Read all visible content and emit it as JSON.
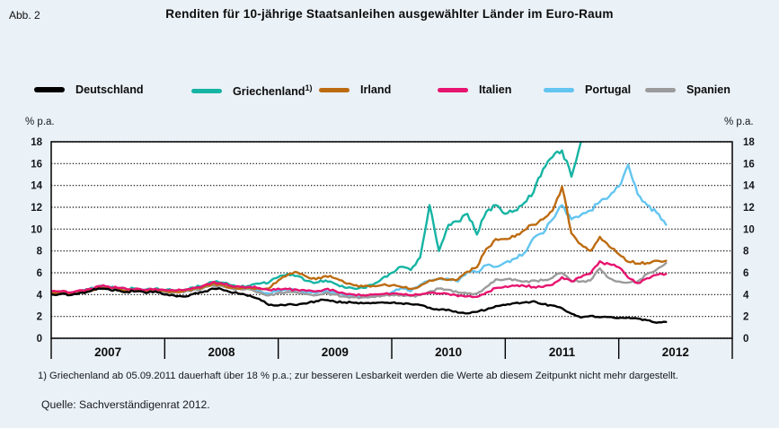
{
  "figure": {
    "fig_label": "Abb. 2",
    "title": "Renditen für 10-jährige Staatsanleihen ausgewählter Länder im Euro-Raum",
    "unit_left": "% p.a.",
    "unit_right": "% p.a.",
    "footnote": "1) Griechenland ab 05.09.2011 dauerhaft über 18 % p.a.; zur besseren Lesbarkeit werden die Werte ab diesem Zeitpunkt nicht mehr dargestellt.",
    "source": "Quelle: Sachverständigenrat 2012."
  },
  "chart_data": {
    "type": "line",
    "title": "Renditen für 10-jährige Staatsanleihen ausgewählter Länder im Euro-Raum",
    "xlabel": "",
    "ylabel": "% p.a.",
    "ylim": [
      0,
      18
    ],
    "ytick_step": 2,
    "grid": "horizontal-dotted",
    "legend_position": "top",
    "x_categories": [
      "2007",
      "2008",
      "2009",
      "2010",
      "2011",
      "2012"
    ],
    "x_start": "2007-01",
    "x_step": "1 month",
    "series": [
      {
        "name": "Deutschland",
        "sup": "",
        "color": "#000000",
        "monthly_values": [
          4.02,
          4.05,
          3.95,
          4.15,
          4.28,
          4.55,
          4.52,
          4.38,
          4.25,
          4.3,
          4.15,
          4.3,
          4.0,
          3.92,
          3.82,
          4.05,
          4.22,
          4.55,
          4.5,
          4.2,
          4.05,
          3.92,
          3.6,
          3.05,
          3.0,
          3.1,
          3.05,
          3.18,
          3.4,
          3.5,
          3.35,
          3.3,
          3.25,
          3.2,
          3.25,
          3.3,
          3.25,
          3.2,
          3.12,
          3.05,
          2.8,
          2.6,
          2.62,
          2.35,
          2.28,
          2.42,
          2.62,
          2.95,
          3.05,
          3.22,
          3.28,
          3.4,
          3.12,
          3.0,
          2.75,
          2.25,
          1.9,
          2.05,
          1.92,
          1.95,
          1.85,
          1.9,
          1.8,
          1.65,
          1.42,
          1.5
        ]
      },
      {
        "name": "Griechenland",
        "sup": "1)",
        "color": "#16b4a3",
        "monthly_values": [
          4.25,
          4.28,
          4.18,
          4.38,
          4.5,
          4.75,
          4.72,
          4.6,
          4.5,
          4.55,
          4.45,
          4.55,
          4.4,
          4.38,
          4.42,
          4.65,
          4.8,
          5.15,
          5.1,
          4.85,
          4.72,
          4.82,
          5.0,
          5.1,
          5.6,
          5.9,
          5.7,
          5.25,
          5.1,
          5.3,
          5.0,
          4.65,
          4.55,
          4.62,
          4.9,
          5.5,
          6.0,
          6.55,
          6.25,
          7.4,
          12.2,
          8.0,
          10.4,
          10.7,
          11.4,
          9.5,
          11.6,
          12.2,
          11.4,
          11.7,
          12.4,
          13.4,
          15.5,
          16.6,
          17.2,
          14.8,
          18.0
        ]
      },
      {
        "name": "Irland",
        "sup": "",
        "color": "#bd6b10",
        "monthly_values": [
          4.1,
          4.12,
          4.02,
          4.22,
          4.35,
          4.62,
          4.6,
          4.48,
          4.35,
          4.42,
          4.3,
          4.45,
          4.32,
          4.28,
          4.32,
          4.52,
          4.65,
          4.95,
          4.9,
          4.62,
          4.55,
          4.62,
          4.52,
          4.55,
          5.3,
          5.8,
          6.05,
          5.65,
          5.4,
          5.7,
          5.5,
          5.1,
          4.85,
          4.75,
          4.8,
          4.88,
          4.85,
          4.7,
          4.52,
          4.78,
          5.3,
          5.45,
          5.35,
          5.4,
          6.1,
          6.5,
          8.2,
          9.1,
          9.1,
          9.3,
          9.9,
          10.4,
          10.9,
          11.7,
          13.9,
          9.6,
          8.6,
          8.0,
          9.3,
          8.4,
          7.7,
          7.0,
          6.85,
          6.9,
          7.1,
          7.1
        ]
      },
      {
        "name": "Italien",
        "sup": "",
        "color": "#e7146f",
        "monthly_values": [
          4.28,
          4.3,
          4.2,
          4.4,
          4.52,
          4.78,
          4.75,
          4.62,
          4.5,
          4.55,
          4.45,
          4.52,
          4.42,
          4.38,
          4.42,
          4.62,
          4.78,
          5.1,
          5.05,
          4.82,
          4.7,
          4.72,
          4.6,
          4.42,
          4.55,
          4.5,
          4.45,
          4.35,
          4.3,
          4.5,
          4.35,
          4.1,
          4.0,
          3.95,
          4.0,
          4.05,
          4.1,
          4.05,
          3.95,
          4.0,
          4.15,
          4.1,
          4.05,
          3.85,
          3.85,
          3.8,
          4.2,
          4.6,
          4.75,
          4.8,
          4.8,
          4.7,
          4.7,
          4.9,
          5.6,
          5.2,
          5.6,
          5.9,
          7.05,
          6.8,
          6.5,
          5.55,
          5.05,
          5.5,
          5.8,
          5.9
        ]
      },
      {
        "name": "Portugal",
        "sup": "",
        "color": "#63c5f0",
        "monthly_values": [
          4.2,
          4.22,
          4.12,
          4.32,
          4.45,
          4.7,
          4.68,
          4.55,
          4.42,
          4.48,
          4.38,
          4.45,
          4.32,
          4.28,
          4.32,
          4.52,
          4.65,
          4.95,
          4.9,
          4.62,
          4.55,
          4.55,
          4.35,
          4.1,
          4.35,
          4.5,
          4.45,
          4.25,
          4.15,
          4.35,
          4.2,
          3.95,
          3.85,
          3.8,
          3.85,
          3.95,
          4.2,
          4.6,
          4.3,
          4.9,
          5.3,
          5.5,
          5.45,
          5.2,
          6.1,
          6.05,
          6.7,
          6.55,
          6.95,
          7.3,
          7.8,
          9.2,
          9.6,
          10.9,
          12.2,
          10.9,
          11.3,
          11.7,
          12.5,
          13.0,
          13.9,
          15.9,
          13.2,
          12.2,
          11.5,
          10.4
        ]
      },
      {
        "name": "Spanien",
        "sup": "",
        "color": "#9b9b9b",
        "monthly_values": [
          4.12,
          4.15,
          4.05,
          4.25,
          4.35,
          4.62,
          4.6,
          4.48,
          4.35,
          4.4,
          4.3,
          4.38,
          4.22,
          4.18,
          4.22,
          4.42,
          4.55,
          4.85,
          4.8,
          4.58,
          4.5,
          4.48,
          4.22,
          3.92,
          4.15,
          4.25,
          4.2,
          4.05,
          3.95,
          4.15,
          4.0,
          3.82,
          3.75,
          3.75,
          3.8,
          3.9,
          3.98,
          3.95,
          3.85,
          3.95,
          4.3,
          4.55,
          4.45,
          4.2,
          4.1,
          4.1,
          4.7,
          5.4,
          5.4,
          5.4,
          5.2,
          5.3,
          5.3,
          5.55,
          6.0,
          5.25,
          5.2,
          5.3,
          6.4,
          5.5,
          5.2,
          5.1,
          5.2,
          5.9,
          6.3,
          6.9
        ]
      }
    ]
  }
}
